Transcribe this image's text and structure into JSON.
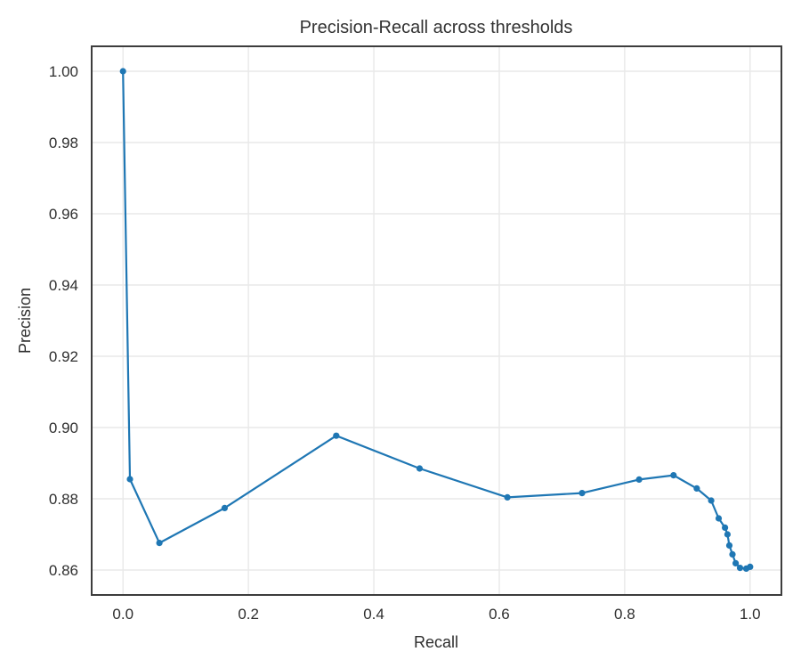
{
  "figure": {
    "background_color": "#ffffff"
  },
  "chart_data": {
    "type": "line",
    "title": "Precision-Recall across thresholds",
    "xlabel": "Recall",
    "ylabel": "Precision",
    "xlim": [
      -0.05,
      1.05
    ],
    "ylim": [
      0.853,
      1.007
    ],
    "grid": true,
    "legend": false,
    "xticks": {
      "values": [
        0.0,
        0.2,
        0.4,
        0.6,
        0.8,
        1.0
      ],
      "labels": [
        "0.0",
        "0.2",
        "0.4",
        "0.6",
        "0.8",
        "1.0"
      ]
    },
    "yticks": {
      "values": [
        0.86,
        0.88,
        0.9,
        0.92,
        0.94,
        0.96,
        0.98,
        1.0
      ],
      "labels": [
        "0.86",
        "0.88",
        "0.90",
        "0.92",
        "0.94",
        "0.96",
        "0.98",
        "1.00"
      ]
    },
    "series": [
      {
        "name": "precision-recall-curve",
        "marker": "circle",
        "x": [
          0.0,
          0.011,
          0.058,
          0.162,
          0.34,
          0.473,
          0.613,
          0.732,
          0.823,
          0.878,
          0.915,
          0.938,
          0.95,
          0.96,
          0.964,
          0.967,
          0.972,
          0.977,
          0.984,
          0.994,
          1.0
        ],
        "y": [
          1.0,
          0.8855,
          0.8676,
          0.8774,
          0.8977,
          0.8885,
          0.8804,
          0.8816,
          0.8854,
          0.8866,
          0.8829,
          0.8795,
          0.8745,
          0.8719,
          0.87,
          0.8669,
          0.8644,
          0.8619,
          0.8606,
          0.8604,
          0.8609
        ]
      }
    ],
    "colors": {
      "line": "#1f77b4",
      "marker": "#1f77b4",
      "grid": "#e9e9e9",
      "spine": "#3d3d3d",
      "text": "#2e2e2e"
    }
  }
}
